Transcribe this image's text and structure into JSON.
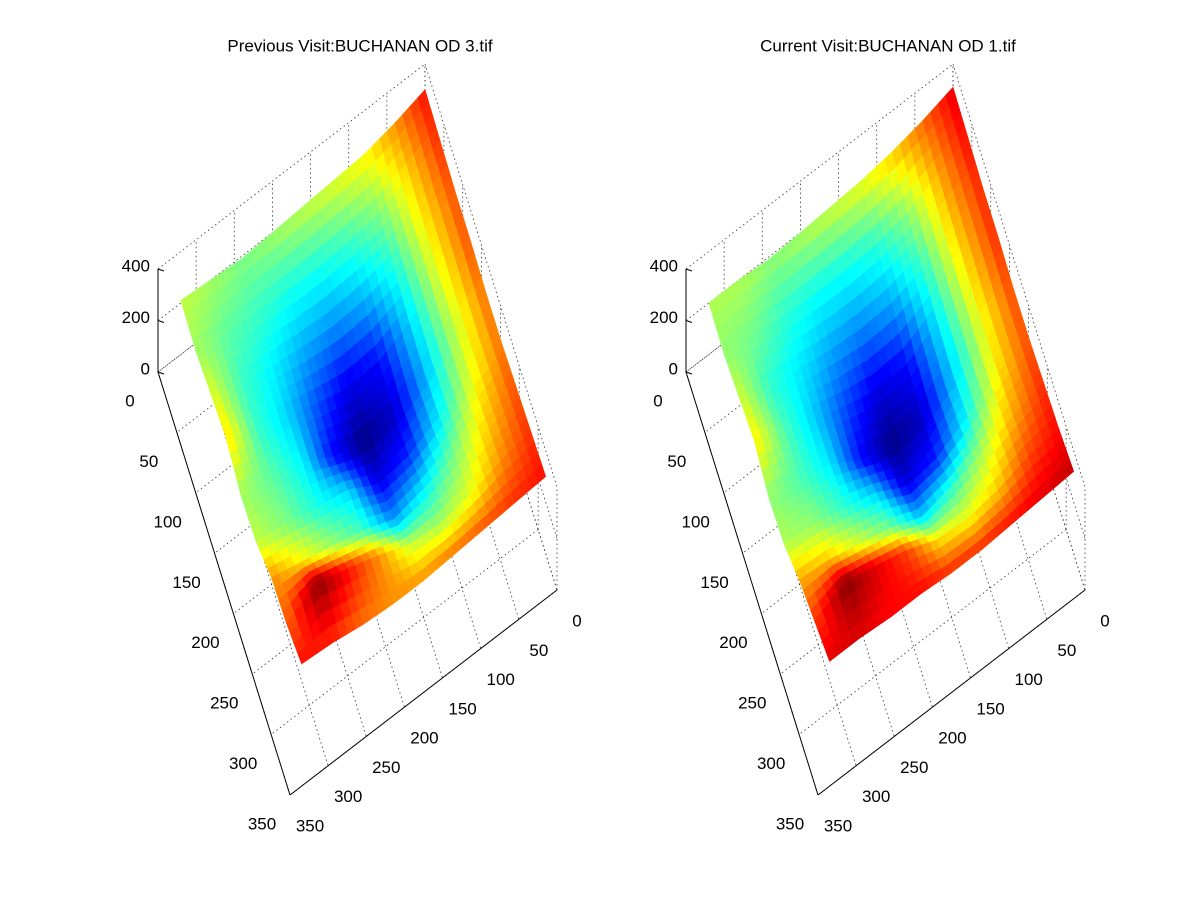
{
  "chart_data": [
    {
      "type": "surface",
      "title": "Previous Visit:BUCHANAN OD 3.tif",
      "xlim": [
        0,
        350
      ],
      "xticks": [
        0,
        50,
        100,
        150,
        200,
        250,
        300,
        350
      ],
      "ylim": [
        0,
        350
      ],
      "yticks": [
        0,
        50,
        100,
        150,
        200,
        250,
        300,
        350
      ],
      "zlim": [
        0,
        400
      ],
      "zticks": [
        0,
        200,
        400
      ],
      "grid": true,
      "x": [
        0,
        40,
        80,
        120,
        160,
        200,
        240,
        280,
        320
      ],
      "y": [
        0,
        40,
        80,
        120,
        160,
        200,
        240,
        280,
        320
      ],
      "z": [
        [
          300,
          260,
          230,
          220,
          210,
          200,
          190,
          200,
          210
        ],
        [
          290,
          240,
          190,
          170,
          160,
          160,
          170,
          180,
          200
        ],
        [
          280,
          230,
          160,
          130,
          120,
          130,
          150,
          170,
          220
        ],
        [
          280,
          220,
          140,
          80,
          70,
          100,
          140,
          170,
          240
        ],
        [
          270,
          210,
          130,
          60,
          40,
          80,
          150,
          180,
          200
        ],
        [
          270,
          220,
          150,
          90,
          70,
          140,
          160,
          190,
          210
        ],
        [
          280,
          240,
          190,
          150,
          120,
          170,
          200,
          230,
          260
        ],
        [
          290,
          260,
          220,
          200,
          210,
          260,
          300,
          340,
          270
        ],
        [
          300,
          290,
          280,
          270,
          260,
          260,
          270,
          290,
          300
        ]
      ]
    },
    {
      "type": "surface",
      "title": "Current Visit:BUCHANAN OD 1.tif",
      "xlim": [
        0,
        350
      ],
      "xticks": [
        0,
        50,
        100,
        150,
        200,
        250,
        300,
        350
      ],
      "ylim": [
        0,
        350
      ],
      "yticks": [
        0,
        50,
        100,
        150,
        200,
        250,
        300,
        350
      ],
      "zlim": [
        0,
        400
      ],
      "zticks": [
        0,
        200,
        400
      ],
      "grid": true,
      "x": [
        0,
        40,
        80,
        120,
        160,
        200,
        240,
        280,
        320
      ],
      "y": [
        0,
        40,
        80,
        120,
        160,
        200,
        240,
        280,
        320
      ],
      "z": [
        [
          310,
          270,
          240,
          220,
          210,
          200,
          190,
          200,
          200
        ],
        [
          300,
          250,
          190,
          160,
          150,
          150,
          160,
          180,
          190
        ],
        [
          290,
          240,
          160,
          120,
          110,
          120,
          140,
          160,
          210
        ],
        [
          290,
          230,
          140,
          70,
          60,
          90,
          130,
          170,
          230
        ],
        [
          280,
          220,
          130,
          50,
          30,
          70,
          140,
          170,
          190
        ],
        [
          280,
          230,
          150,
          80,
          60,
          130,
          160,
          190,
          200
        ],
        [
          290,
          250,
          200,
          160,
          130,
          180,
          210,
          240,
          250
        ],
        [
          300,
          280,
          240,
          220,
          230,
          280,
          310,
          340,
          280
        ],
        [
          320,
          310,
          300,
          290,
          290,
          300,
          300,
          310,
          310
        ]
      ]
    }
  ]
}
